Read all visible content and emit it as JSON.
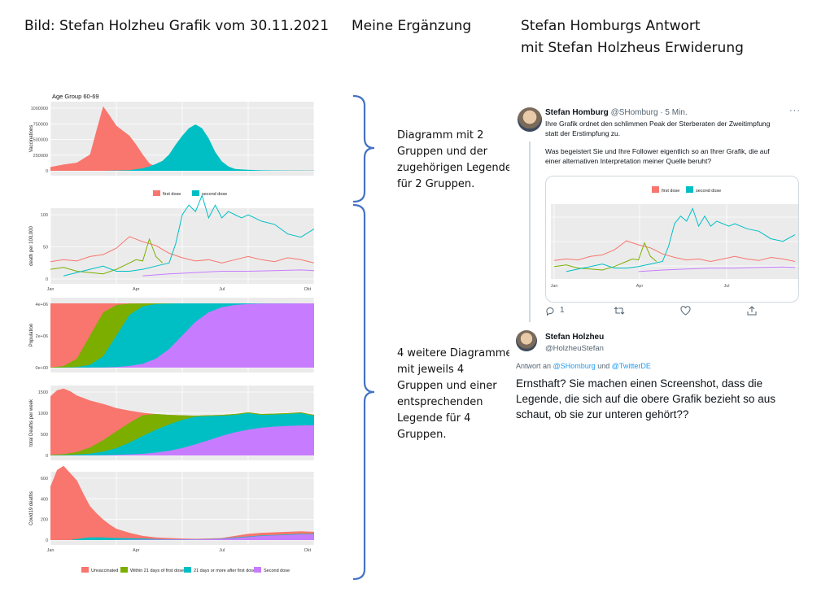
{
  "headers": {
    "col1": "Bild: Stefan Holzheu Grafik vom 30.11.2021",
    "col2": "Meine Ergänzung",
    "col3_line1": "Stefan Homburgs Antwort",
    "col3_line2": "mit Stefan Holzheus Erwiderung"
  },
  "notes": {
    "note1": [
      "Diagramm mit 2",
      "Gruppen und der",
      "zugehörigen Legende",
      "für 2 Gruppen."
    ],
    "note2": [
      "4 weitere Diagramme",
      "mit jeweils 4",
      "Gruppen und einer",
      "entsprechenden",
      "Legende für 4",
      "Gruppen."
    ]
  },
  "colors": {
    "red": "#f8766d",
    "green": "#7cae00",
    "cyan": "#00bfc4",
    "purple": "#c77cff",
    "panel": "#ebebeb",
    "bracket": "#4472c4"
  },
  "chart_data": [
    {
      "type": "area",
      "title": "Age Group 60-69",
      "ylabel": "Vaccinations",
      "yticks": [
        "0",
        "250000",
        "500000",
        "750000",
        "1000000"
      ],
      "ylim": [
        0,
        1050000
      ],
      "legend": [
        "first dose",
        "second dose"
      ],
      "legend_position": "bottom",
      "series": [
        {
          "name": "first dose",
          "color": "#f8766d",
          "x": [
            0,
            2,
            4,
            6,
            7,
            8,
            9,
            10,
            11,
            12,
            13,
            14,
            15,
            16,
            18,
            20,
            22,
            24,
            26,
            28,
            30,
            35,
            40
          ],
          "values": [
            60000,
            100000,
            130000,
            260000,
            650000,
            1030000,
            880000,
            720000,
            640000,
            560000,
            420000,
            260000,
            120000,
            60000,
            40000,
            30000,
            20000,
            15000,
            10000,
            8000,
            6000,
            4000,
            3000
          ]
        },
        {
          "name": "second dose",
          "color": "#00bfc4",
          "x": [
            0,
            8,
            12,
            14,
            15,
            16,
            17,
            18,
            19,
            20,
            21,
            22,
            23,
            24,
            25,
            26,
            27,
            28,
            30,
            32,
            35,
            40
          ],
          "values": [
            0,
            0,
            10000,
            40000,
            70000,
            110000,
            160000,
            260000,
            420000,
            560000,
            680000,
            740000,
            680000,
            520000,
            300000,
            150000,
            70000,
            30000,
            15000,
            8000,
            5000,
            3000
          ]
        }
      ]
    },
    {
      "type": "line",
      "ylabel": "death per 100,000",
      "yticks": [
        "0",
        "50",
        "100"
      ],
      "ylim": [
        0,
        140
      ],
      "xticks": [
        "Jan",
        "Apr",
        "Jul",
        "Okt"
      ],
      "series": [
        {
          "name": "Unvaccinated",
          "color": "#f8766d",
          "x": [
            0,
            2,
            4,
            6,
            8,
            10,
            12,
            14,
            16,
            18,
            20,
            22,
            24,
            26,
            28,
            30,
            32,
            34,
            36,
            38,
            40
          ],
          "values": [
            27,
            30,
            28,
            35,
            38,
            48,
            66,
            58,
            52,
            40,
            33,
            28,
            30,
            25,
            30,
            35,
            30,
            27,
            33,
            30,
            25
          ]
        },
        {
          "name": "Within 21 days of first dose",
          "color": "#7cae00",
          "x": [
            0,
            2,
            4,
            6,
            8,
            10,
            11,
            12,
            13,
            14,
            15,
            16,
            17
          ],
          "values": [
            15,
            18,
            12,
            10,
            8,
            15,
            20,
            25,
            30,
            28,
            62,
            35,
            25
          ]
        },
        {
          "name": "21 days or more after first dose",
          "color": "#00bfc4",
          "x": [
            2,
            4,
            6,
            8,
            10,
            12,
            14,
            16,
            18,
            19,
            20,
            21,
            22,
            23,
            24,
            25,
            26,
            27,
            28,
            29,
            30,
            32,
            34,
            36,
            38,
            40
          ],
          "values": [
            5,
            10,
            15,
            20,
            12,
            12,
            15,
            20,
            25,
            55,
            100,
            115,
            105,
            130,
            95,
            115,
            95,
            105,
            100,
            95,
            100,
            90,
            85,
            70,
            65,
            78
          ]
        },
        {
          "name": "Second dose",
          "color": "#c77cff",
          "x": [
            14,
            18,
            22,
            26,
            30,
            34,
            38,
            40
          ],
          "values": [
            5,
            8,
            10,
            12,
            12,
            13,
            14,
            13
          ]
        }
      ]
    },
    {
      "type": "area",
      "ylabel": "Population",
      "yticks": [
        "0e+00",
        "2e+06",
        "4e+06"
      ],
      "stacked": true
    },
    {
      "type": "area",
      "ylabel": "total Deaths per week",
      "yticks": [
        "0",
        "500",
        "1000",
        "1500"
      ],
      "ylim": [
        0,
        1600
      ],
      "stacked": true
    },
    {
      "type": "area",
      "ylabel": "Covid19 deaths",
      "yticks": [
        "0",
        "200",
        "400",
        "600"
      ],
      "xticks": [
        "Jan",
        "Apr",
        "Jul",
        "Okt"
      ],
      "ylim": [
        0,
        800
      ],
      "legend": [
        "Unvaccinated",
        "Within 21 days of first dose",
        "21 days or more after first dose",
        "Second dose"
      ],
      "legend_position": "bottom",
      "stacked": true
    }
  ],
  "tweet": {
    "name": "Stefan Homburg",
    "handle": "@SHomburg · 5 Min.",
    "more": "···",
    "text_line1": "Ihre Grafik ordnet den schlimmen Peak der Sterberaten der Zweitimpfung",
    "text_line2": "statt der Erstimpfung zu.",
    "text_line3": "Was begeistert Sie und Ihre Follower eigentlich so an Ihrer Grafik, die auf",
    "text_line4": "einer alternativen Interpretation meiner Quelle beruht?",
    "embed_legend": [
      "first dose",
      "second dose"
    ],
    "embed_xticks": [
      "Jan",
      "Apr",
      "Jul"
    ],
    "reply_count": "1"
  },
  "reply": {
    "name": "Stefan Holzheu",
    "handle": "@HolzheuStefan",
    "meta_prefix": "Antwort an",
    "meta_link1": "@SHomburg",
    "meta_and": "und",
    "meta_link2": "@TwitterDE",
    "text": "Ernsthaft? Sie machen einen Screenshot, dass die Legende, die sich auf die obere Grafik bezieht so aus schaut, ob sie zur unteren gehört??"
  }
}
